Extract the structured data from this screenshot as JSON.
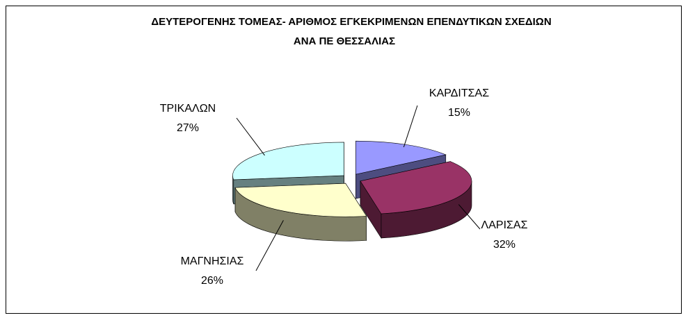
{
  "chart_data": {
    "type": "pie",
    "title": [
      "ΔΕΥΤΕΡΟΓΕΝΗΣ ΤΟΜΕΑΣ- ΑΡΙΘΜΟΣ ΕΓΚΕΚΡΙΜΕΝΩΝ  ΕΠΕΝΔΥΤΙΚΩΝ  ΣΧΕΔΙΩΝ",
      "ΑΝΑ ΠΕ ΘΕΣΣΑΛΙΑΣ"
    ],
    "categories": [
      "ΚΑΡΔΙΤΣΑΣ",
      "ΛΑΡΙΣΑΣ",
      "ΜΑΓΝΗΣΙΑΣ",
      "ΤΡΙΚΑΛΩΝ"
    ],
    "values": [
      15,
      32,
      26,
      27
    ],
    "value_labels": [
      "15%",
      "32%",
      "26%",
      "27%"
    ],
    "colors": [
      "#9999ff",
      "#993366",
      "#ffffcc",
      "#ccffff"
    ]
  }
}
